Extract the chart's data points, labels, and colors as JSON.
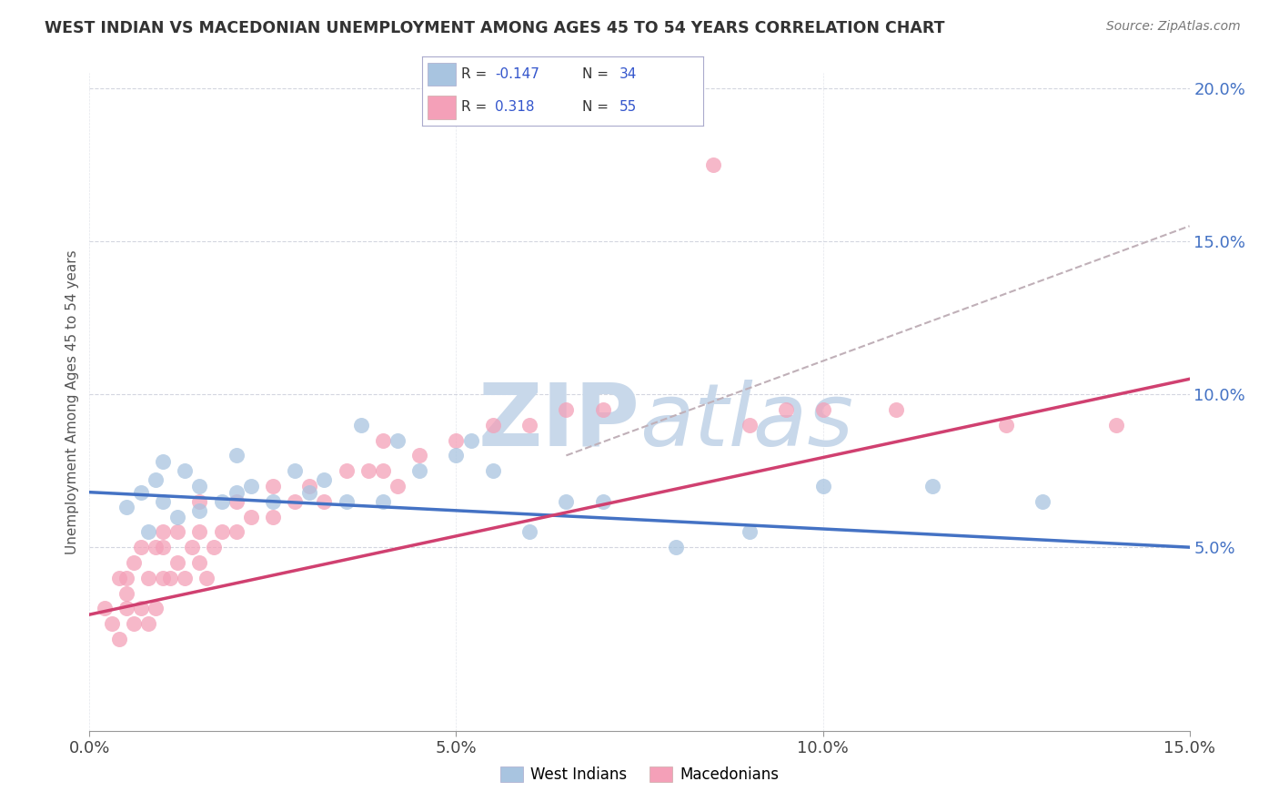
{
  "title": "WEST INDIAN VS MACEDONIAN UNEMPLOYMENT AMONG AGES 45 TO 54 YEARS CORRELATION CHART",
  "source": "Source: ZipAtlas.com",
  "ylabel": "Unemployment Among Ages 45 to 54 years",
  "xlim": [
    0.0,
    0.15
  ],
  "ylim": [
    -0.01,
    0.205
  ],
  "xticks": [
    0.0,
    0.05,
    0.1,
    0.15
  ],
  "yticks": [
    0.05,
    0.1,
    0.15,
    0.2
  ],
  "xtick_labels": [
    "0.0%",
    "5.0%",
    "10.0%",
    "15.0%"
  ],
  "ytick_labels": [
    "5.0%",
    "10.0%",
    "15.0%",
    "20.0%"
  ],
  "west_indian_color": "#a8c4e0",
  "macedonian_color": "#f4a0b8",
  "west_indian_line_color": "#4472c4",
  "macedonian_line_color": "#d04070",
  "trend_dash_color": "#c0b0b8",
  "background_color": "#ffffff",
  "watermark_color": "#c8d8ea",
  "west_indians_x": [
    0.005,
    0.007,
    0.008,
    0.009,
    0.01,
    0.01,
    0.012,
    0.013,
    0.015,
    0.015,
    0.018,
    0.02,
    0.02,
    0.022,
    0.025,
    0.028,
    0.03,
    0.032,
    0.035,
    0.037,
    0.04,
    0.042,
    0.045,
    0.05,
    0.052,
    0.055,
    0.06,
    0.065,
    0.07,
    0.08,
    0.09,
    0.1,
    0.115,
    0.13
  ],
  "west_indians_y": [
    0.063,
    0.068,
    0.055,
    0.072,
    0.065,
    0.078,
    0.06,
    0.075,
    0.062,
    0.07,
    0.065,
    0.068,
    0.08,
    0.07,
    0.065,
    0.075,
    0.068,
    0.072,
    0.065,
    0.09,
    0.065,
    0.085,
    0.075,
    0.08,
    0.085,
    0.075,
    0.055,
    0.065,
    0.065,
    0.05,
    0.055,
    0.07,
    0.07,
    0.065
  ],
  "macedonians_x": [
    0.002,
    0.003,
    0.004,
    0.004,
    0.005,
    0.005,
    0.005,
    0.006,
    0.006,
    0.007,
    0.007,
    0.008,
    0.008,
    0.009,
    0.009,
    0.01,
    0.01,
    0.01,
    0.011,
    0.012,
    0.012,
    0.013,
    0.014,
    0.015,
    0.015,
    0.015,
    0.016,
    0.017,
    0.018,
    0.02,
    0.02,
    0.022,
    0.025,
    0.025,
    0.028,
    0.03,
    0.032,
    0.035,
    0.038,
    0.04,
    0.04,
    0.042,
    0.045,
    0.05,
    0.055,
    0.06,
    0.065,
    0.07,
    0.085,
    0.09,
    0.095,
    0.1,
    0.11,
    0.125,
    0.14
  ],
  "macedonians_y": [
    0.03,
    0.025,
    0.02,
    0.04,
    0.03,
    0.035,
    0.04,
    0.025,
    0.045,
    0.03,
    0.05,
    0.025,
    0.04,
    0.03,
    0.05,
    0.04,
    0.05,
    0.055,
    0.04,
    0.045,
    0.055,
    0.04,
    0.05,
    0.045,
    0.055,
    0.065,
    0.04,
    0.05,
    0.055,
    0.055,
    0.065,
    0.06,
    0.06,
    0.07,
    0.065,
    0.07,
    0.065,
    0.075,
    0.075,
    0.075,
    0.085,
    0.07,
    0.08,
    0.085,
    0.09,
    0.09,
    0.095,
    0.095,
    0.175,
    0.09,
    0.095,
    0.095,
    0.095,
    0.09,
    0.09
  ],
  "wi_trend_x0": 0.0,
  "wi_trend_y0": 0.068,
  "wi_trend_x1": 0.15,
  "wi_trend_y1": 0.05,
  "mac_trend_x0": 0.0,
  "mac_trend_y0": 0.028,
  "mac_trend_x1": 0.15,
  "mac_trend_y1": 0.105,
  "dash_trend_x0": 0.065,
  "dash_trend_y0": 0.08,
  "dash_trend_x1": 0.15,
  "dash_trend_y1": 0.155
}
